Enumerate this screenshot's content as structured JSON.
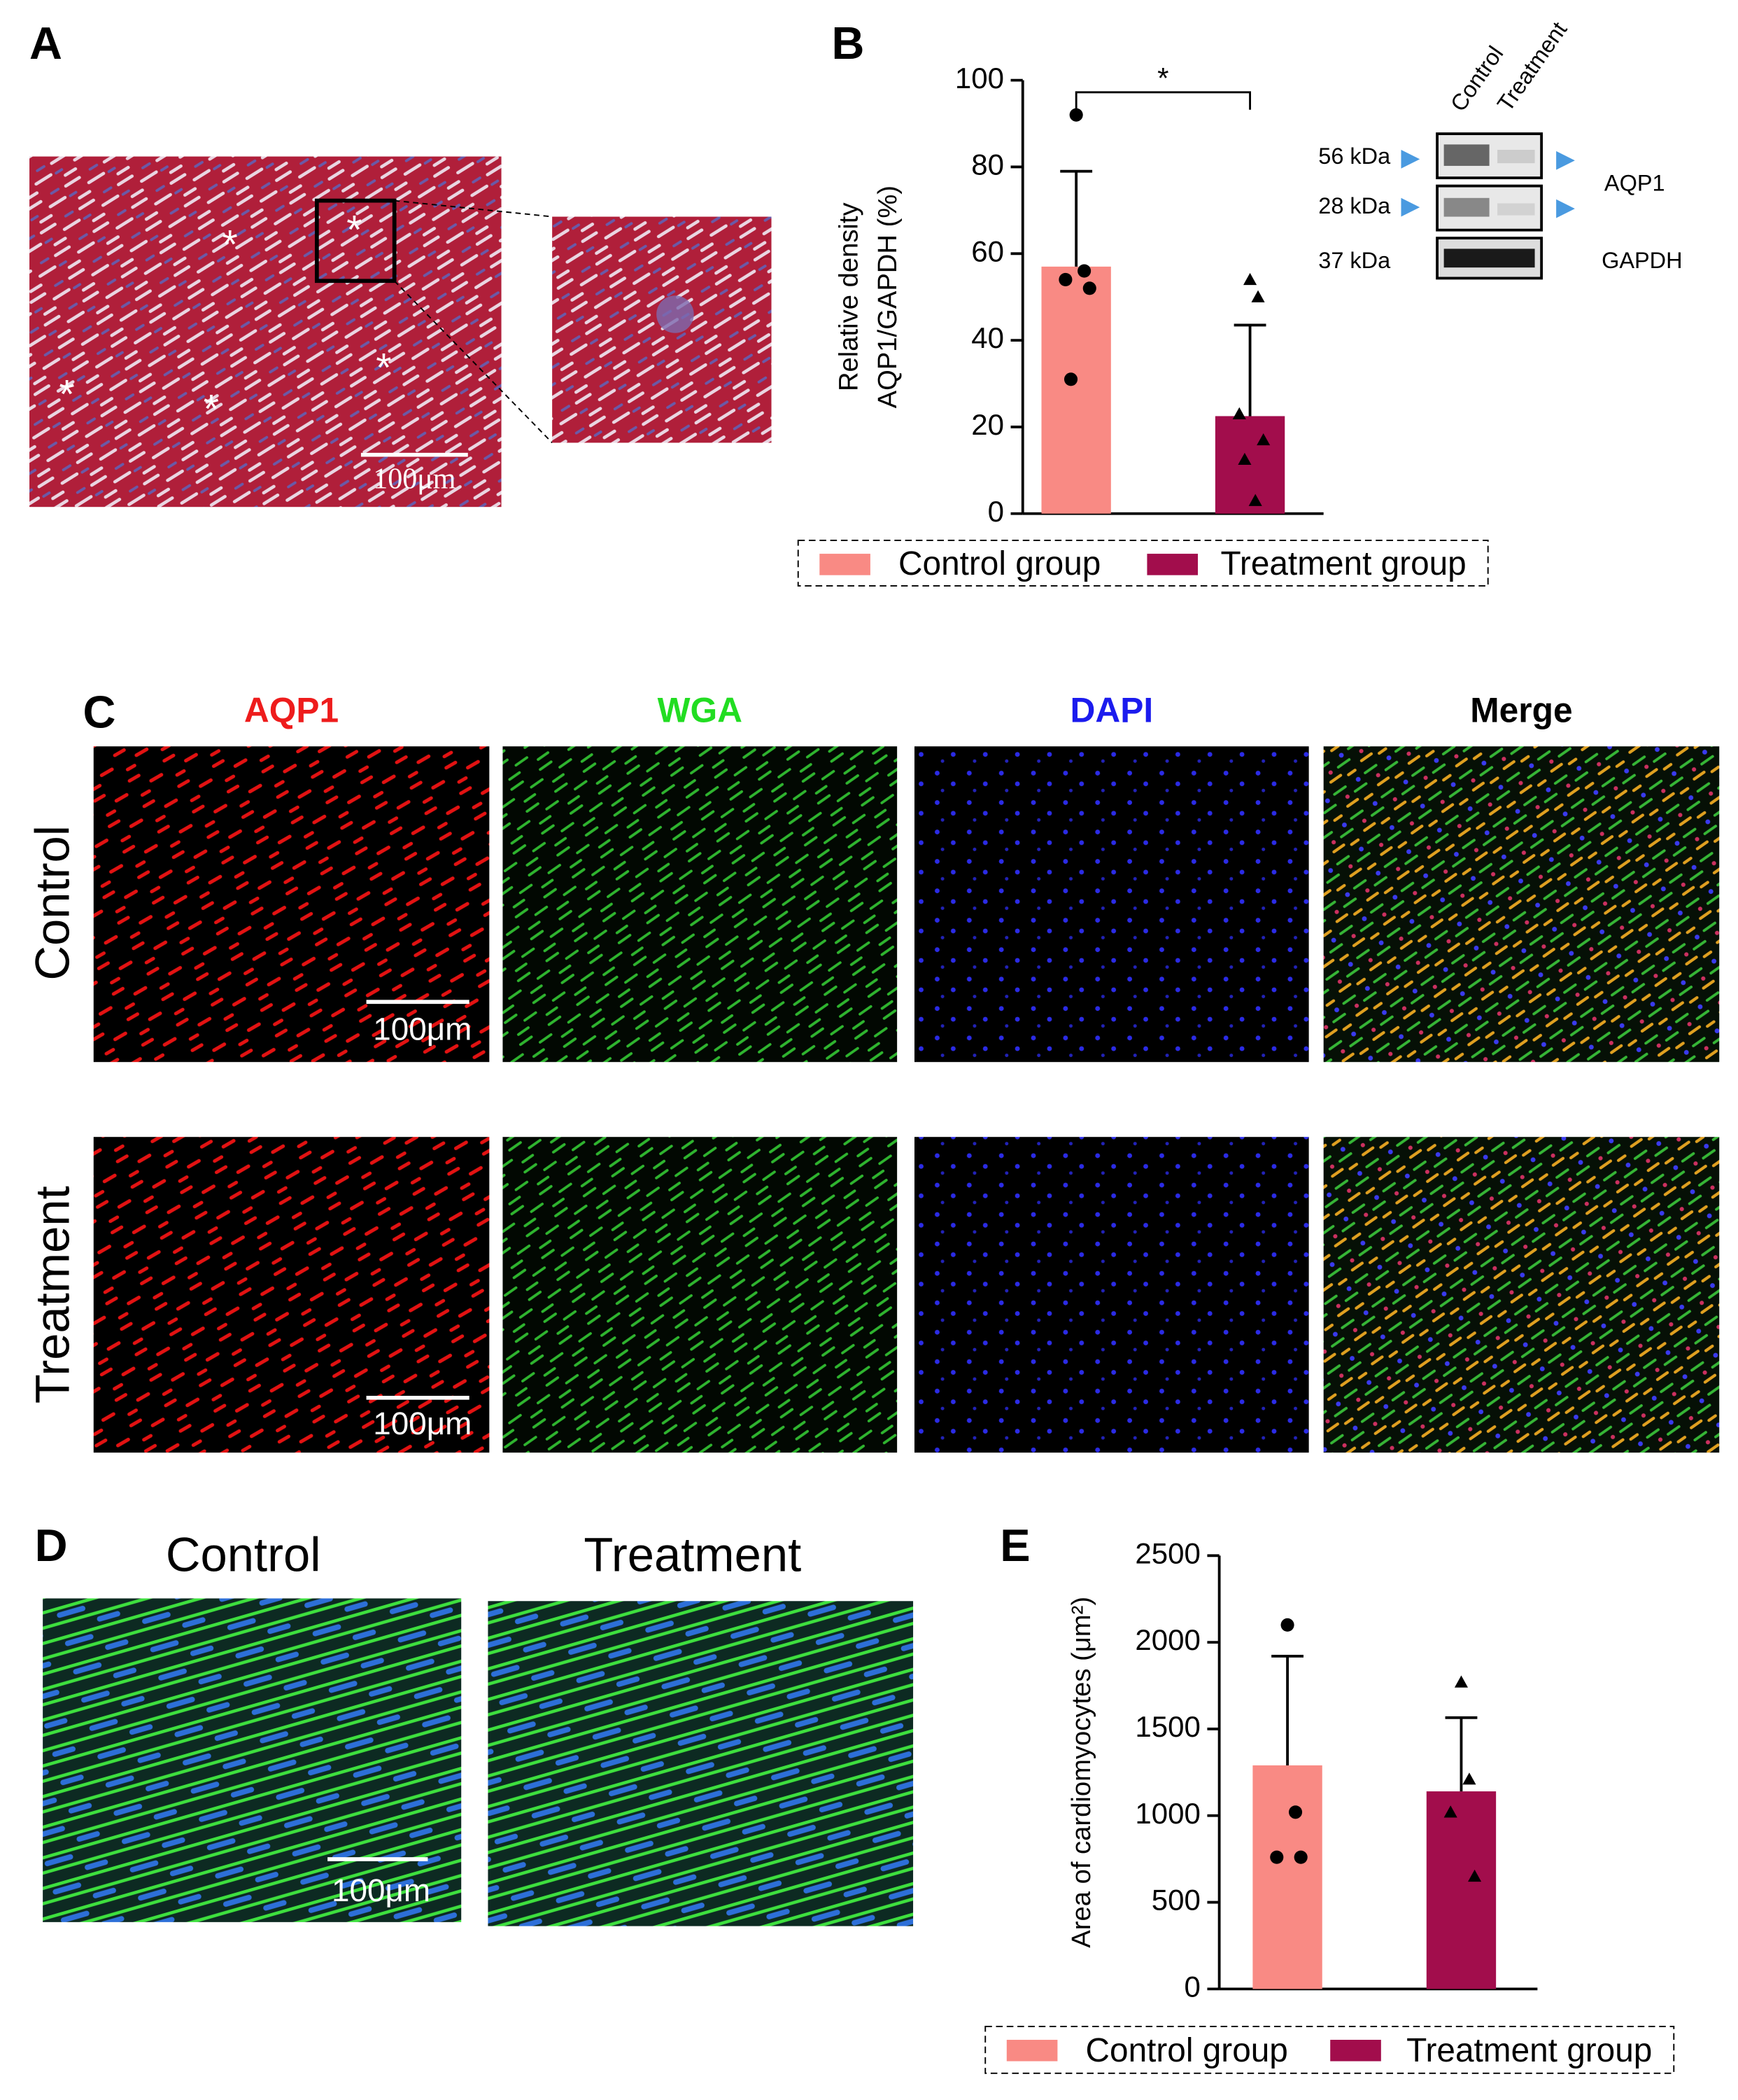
{
  "panel_labels": [
    "A",
    "B",
    "C",
    "D",
    "E"
  ],
  "panel_a": {
    "asterisks": [
      "*",
      "*",
      "*",
      "*",
      "*"
    ],
    "scale_bar": "100μm"
  },
  "blot": {
    "lanes": [
      "Control",
      "Treatment"
    ],
    "markers": [
      "56 kDa",
      "28 kDa",
      "37 kDa"
    ],
    "proteins": [
      "AQP1",
      "GAPDH"
    ]
  },
  "panel_c": {
    "channels": [
      "AQP1",
      "WGA",
      "DAPI",
      "Merge"
    ],
    "rows": [
      "Control",
      "Treatment"
    ],
    "scale_bars": [
      "100μm",
      "100μm"
    ]
  },
  "panel_d": {
    "columns": [
      "Control",
      "Treatment"
    ],
    "scale_bar": "100μm"
  },
  "chart_data": [
    {
      "type": "bar",
      "ylabel": [
        "Relative density",
        "AQP1/GAPDH (%)"
      ],
      "categories": [
        "Control group",
        "Treatment group"
      ],
      "colors": [
        "#f98a84",
        "#a20d4c"
      ],
      "values": [
        57,
        22.5
      ],
      "errors": [
        22,
        21
      ],
      "points": [
        [
          92,
          56,
          54,
          52,
          31
        ],
        [
          54,
          50,
          23,
          17,
          12.5,
          3
        ]
      ],
      "markers": [
        "circle",
        "triangle"
      ],
      "significance": "*",
      "ylim": [
        0,
        100
      ],
      "yticks": [
        0,
        20,
        40,
        60,
        80,
        100
      ]
    },
    {
      "type": "bar",
      "ylabel": [
        "Area of cardiomyocytes (μm²)"
      ],
      "categories": [
        "Control group",
        "Treatment group"
      ],
      "colors": [
        "#f98a84",
        "#a20d4c"
      ],
      "values": [
        1290,
        1140
      ],
      "errors": [
        630,
        425
      ],
      "points": [
        [
          2100,
          1020,
          760,
          760
        ],
        [
          1770,
          1210,
          1020,
          650
        ]
      ],
      "markers": [
        "circle",
        "triangle"
      ],
      "ylim": [
        0,
        2500
      ],
      "yticks": [
        0,
        500,
        1000,
        1500,
        2000,
        2500
      ]
    }
  ]
}
